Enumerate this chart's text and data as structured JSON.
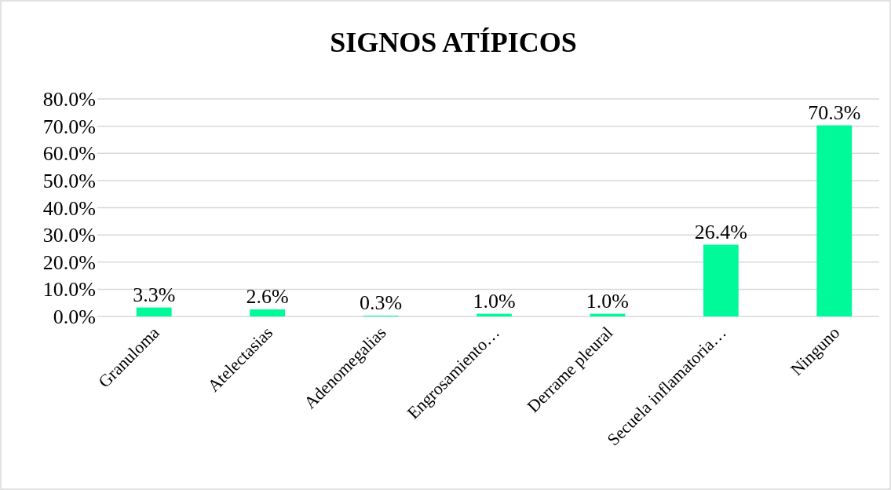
{
  "chart_data": {
    "type": "bar",
    "title": "SIGNOS ATÍPICOS",
    "categories": [
      "Granuloma",
      "Atelectasias",
      "Adenomegalias",
      "Engrosamiento…",
      "Derrame pleural",
      "Secuela inflamatoria…",
      "Ninguno"
    ],
    "values": [
      3.3,
      2.6,
      0.3,
      1.0,
      1.0,
      26.4,
      70.3
    ],
    "value_labels": [
      "3.3%",
      "2.6%",
      "0.3%",
      "1.0%",
      "1.0%",
      "26.4%",
      "70.3%"
    ],
    "color": "#00fa9a",
    "ylim": [
      0,
      80
    ],
    "yticks": [
      {
        "value": 0,
        "label": "0.0%"
      },
      {
        "value": 10,
        "label": "10.0%"
      },
      {
        "value": 20,
        "label": "20.0%"
      },
      {
        "value": 30,
        "label": "30.0%"
      },
      {
        "value": 40,
        "label": "40.0%"
      },
      {
        "value": 50,
        "label": "50.0%"
      },
      {
        "value": 60,
        "label": "60.0%"
      },
      {
        "value": 70,
        "label": "70.0%"
      },
      {
        "value": 80,
        "label": "80.0%"
      }
    ],
    "grid": "y"
  }
}
